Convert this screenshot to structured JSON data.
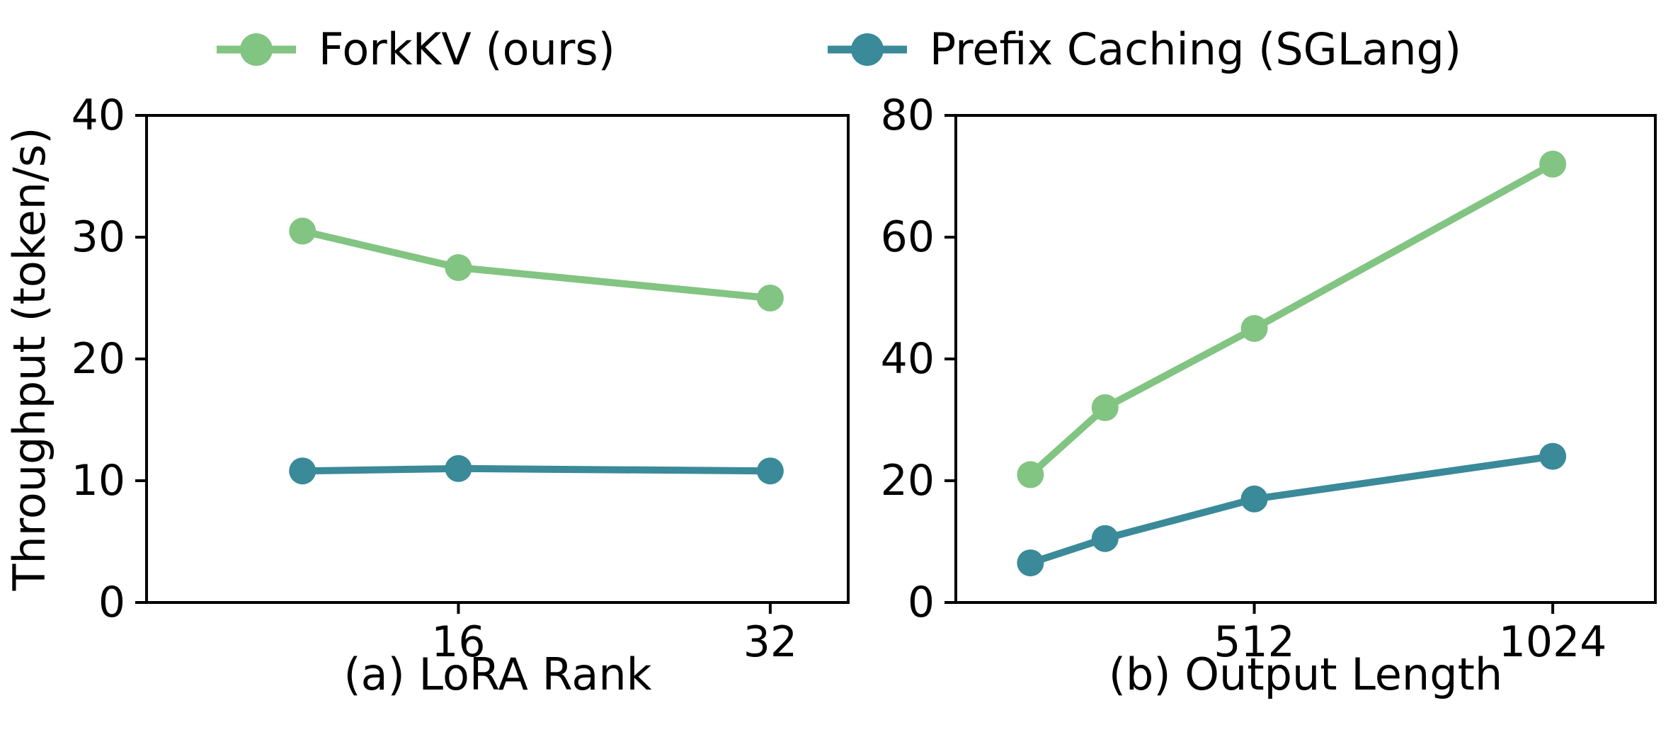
{
  "figure": {
    "ylabel": "Throughput (token/s)",
    "background": "#ffffff",
    "legend": [
      {
        "label": "ForkKV (ours)",
        "color": "#82c482"
      },
      {
        "label": "Prefix Caching (SGLang)",
        "color": "#3a8a99"
      }
    ]
  },
  "chart_data": [
    {
      "type": "line",
      "title": "(a) LoRA Rank",
      "xlabel": "(a) LoRA Rank",
      "ylabel": "Throughput (token/s)",
      "x": [
        8,
        16,
        32
      ],
      "xticks": [
        16,
        32
      ],
      "xlim": [
        0,
        36
      ],
      "yticks": [
        0,
        10,
        20,
        30,
        40
      ],
      "ylim": [
        0,
        40
      ],
      "grid": false,
      "legend_position": "above-figure",
      "series": [
        {
          "name": "ForkKV (ours)",
          "color": "#82c482",
          "values": [
            30.5,
            27.5,
            25.0
          ]
        },
        {
          "name": "Prefix Caching (SGLang)",
          "color": "#3a8a99",
          "values": [
            10.8,
            11.0,
            10.8
          ]
        }
      ]
    },
    {
      "type": "line",
      "title": "(b) Output Length",
      "xlabel": "(b) Output Length",
      "ylabel": "",
      "x": [
        128,
        256,
        512,
        1024
      ],
      "xticks": [
        512,
        1024
      ],
      "xlim": [
        0,
        1200
      ],
      "yticks": [
        0,
        20,
        40,
        60,
        80
      ],
      "ylim": [
        0,
        80
      ],
      "grid": false,
      "legend_position": "above-figure",
      "series": [
        {
          "name": "ForkKV (ours)",
          "color": "#82c482",
          "values": [
            21.0,
            32.0,
            45.0,
            72.0
          ]
        },
        {
          "name": "Prefix Caching (SGLang)",
          "color": "#3a8a99",
          "values": [
            6.5,
            10.5,
            17.0,
            24.0
          ]
        }
      ]
    }
  ]
}
